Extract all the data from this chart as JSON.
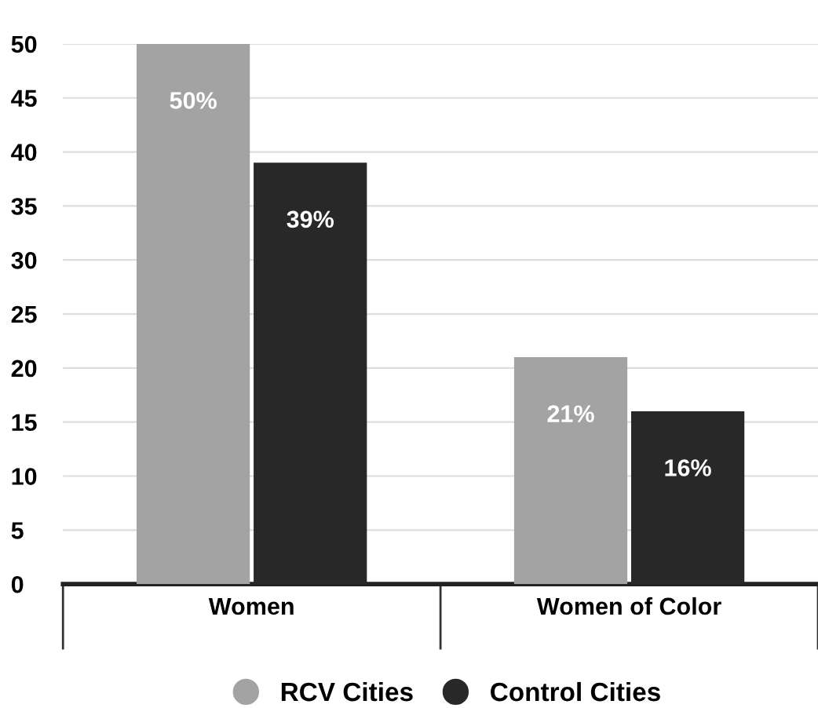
{
  "chart_data": {
    "type": "bar",
    "categories": [
      "Women",
      "Women of Color"
    ],
    "series": [
      {
        "name": "RCV Cities",
        "color": "#a3a3a3",
        "values": [
          50,
          21
        ],
        "value_labels": [
          "50%",
          "21%"
        ]
      },
      {
        "name": "Control Cities",
        "color": "#282828",
        "values": [
          39,
          16
        ],
        "value_labels": [
          "39%",
          "16%"
        ]
      }
    ],
    "ylim": [
      0,
      50
    ],
    "yticks": [
      0,
      5,
      10,
      15,
      20,
      25,
      30,
      35,
      40,
      45,
      50
    ],
    "grid": "y",
    "legend": "bottom",
    "marker": "circle"
  }
}
